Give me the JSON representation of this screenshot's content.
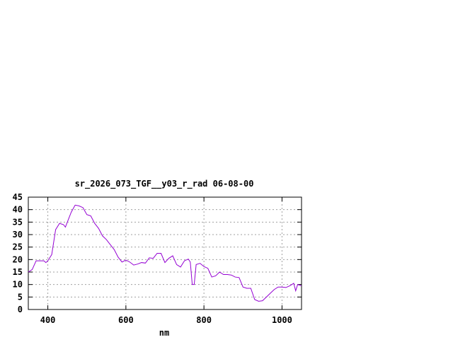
{
  "chart_data": {
    "type": "line",
    "title": "sr_2026_073_TGF__y03_r_rad 06-08-00",
    "xlabel": "nm",
    "ylabel": "",
    "xlim": [
      350,
      1050
    ],
    "ylim": [
      0,
      45
    ],
    "xticks": [
      400,
      600,
      800,
      1000
    ],
    "yticks": [
      0,
      5,
      10,
      15,
      20,
      25,
      30,
      35,
      40,
      45
    ],
    "grid": true,
    "line_color": "#9400d3",
    "x": [
      350,
      360,
      370,
      380,
      390,
      395,
      400,
      410,
      420,
      430,
      440,
      445,
      450,
      460,
      470,
      480,
      490,
      500,
      510,
      520,
      530,
      540,
      550,
      560,
      570,
      580,
      590,
      600,
      610,
      620,
      630,
      640,
      650,
      660,
      670,
      680,
      690,
      700,
      710,
      720,
      730,
      740,
      750,
      760,
      765,
      770,
      775,
      780,
      790,
      800,
      810,
      820,
      830,
      840,
      850,
      860,
      870,
      880,
      890,
      900,
      910,
      920,
      930,
      940,
      950,
      960,
      970,
      980,
      990,
      1000,
      1010,
      1020,
      1030,
      1035,
      1040,
      1050
    ],
    "y": [
      15,
      16,
      19.5,
      19.5,
      19.5,
      18.8,
      19.5,
      22,
      32,
      34.5,
      34,
      33,
      35,
      39,
      41.8,
      41.5,
      40.8,
      38,
      37.5,
      34.5,
      32.5,
      29.5,
      28,
      26,
      24,
      21,
      19,
      19.8,
      19,
      17.8,
      18.2,
      18.8,
      18.6,
      20.7,
      20.5,
      22.5,
      22.5,
      18.8,
      20.5,
      21.5,
      18,
      17,
      19.5,
      20.2,
      19,
      10,
      10,
      18,
      18.5,
      17.2,
      16.5,
      13,
      13.5,
      15,
      14,
      14,
      13.8,
      13,
      12.8,
      9,
      8.5,
      8.5,
      4,
      3.3,
      3.5,
      5,
      6.5,
      8,
      9,
      9,
      8.8,
      9.5,
      10.5,
      7.5,
      10,
      9.5
    ]
  }
}
